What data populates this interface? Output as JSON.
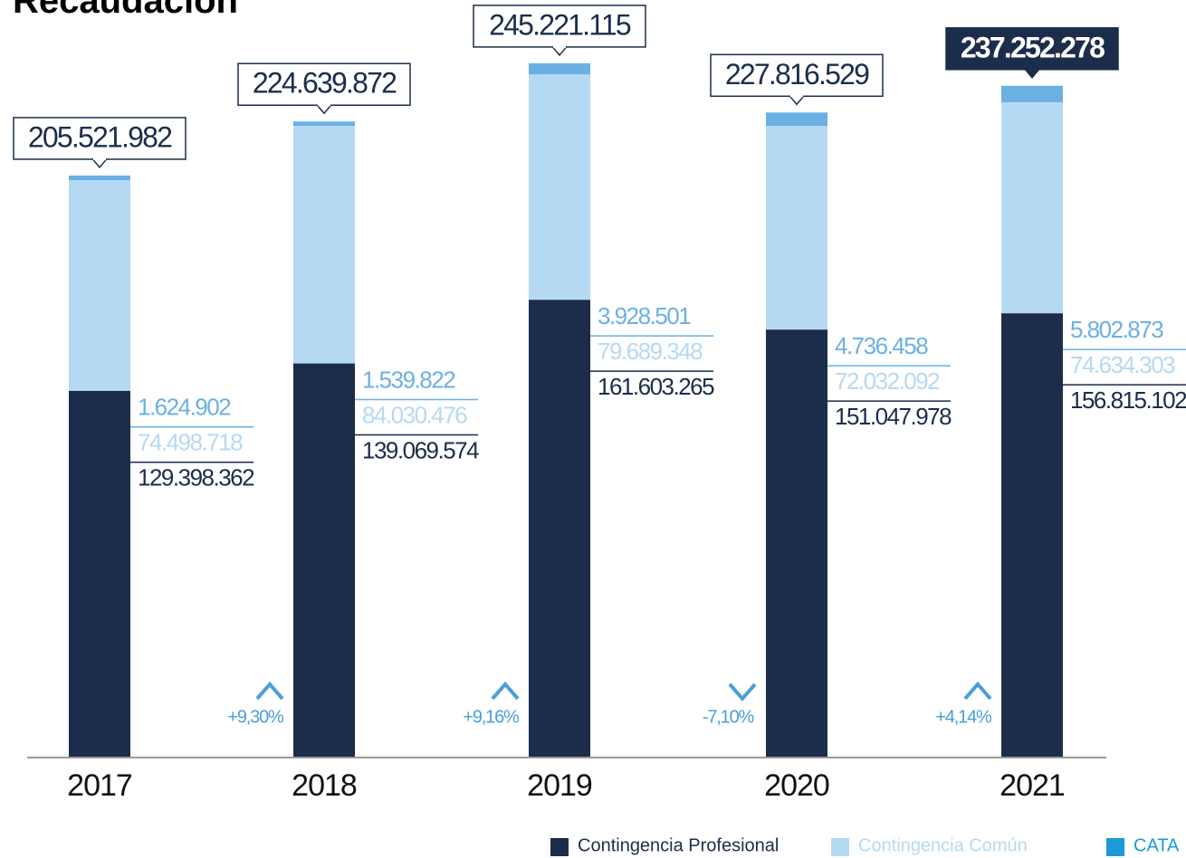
{
  "chart_data": {
    "type": "bar",
    "stacked": true,
    "title": "Recaudación",
    "categories": [
      "2017",
      "2018",
      "2019",
      "2020",
      "2021"
    ],
    "ylim": [
      0,
      250000000
    ],
    "series": [
      {
        "name": "Contingencia Profesional",
        "color": "#1b2d4b",
        "values": [
          129398362,
          139069574,
          161603265,
          151047978,
          156815102
        ],
        "value_labels": [
          "129.398.362",
          "139.069.574",
          "161.603.265",
          "151.047.978",
          "156.815.102"
        ]
      },
      {
        "name": "Contingencia Común",
        "color": "#b6d9f3",
        "values": [
          74498718,
          84030476,
          79689348,
          72032092,
          74634303
        ],
        "value_labels": [
          "74.498.718",
          "84.030.476",
          "79.689.348",
          "72.032.092",
          "74.634.303"
        ]
      },
      {
        "name": "CATA",
        "color": "#6ab0e3",
        "values": [
          1624902,
          1539822,
          3928501,
          4736458,
          5802873
        ],
        "value_labels": [
          "1.624.902",
          "1.539.822",
          "3.928.501",
          "4.736.458",
          "5.802.873"
        ]
      }
    ],
    "totals": {
      "values": [
        205521982,
        224639872,
        245221115,
        227816529,
        237252278
      ],
      "value_labels": [
        "205.521.982",
        "224.639.872",
        "245.221.115",
        "227.816.529",
        "237.252.278"
      ]
    },
    "changes": {
      "values": [
        null,
        9.3,
        9.16,
        -7.1,
        4.14
      ],
      "value_labels": [
        null,
        "+9,30%",
        "+9,16%",
        "-7,10%",
        "+4,14%"
      ]
    }
  }
}
